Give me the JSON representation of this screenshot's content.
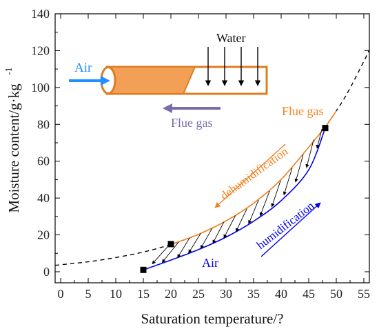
{
  "chart_data": {
    "type": "line",
    "xlabel": "Saturation temperature/?",
    "ylabel": "Moisture content/g·kg",
    "ylabel_exp": "-1",
    "xlim": [
      -1,
      56
    ],
    "ylim": [
      -6,
      140
    ],
    "xticks": [
      0,
      5,
      10,
      15,
      20,
      25,
      30,
      35,
      40,
      45,
      50,
      55
    ],
    "yticks": [
      0,
      20,
      40,
      60,
      80,
      100,
      120,
      140
    ],
    "grid": false,
    "series": [
      {
        "name": "",
        "style": "dashed",
        "color": "#000000",
        "x": [
          -1,
          0,
          5,
          10,
          15,
          20,
          25,
          30,
          35,
          40,
          45,
          48,
          50,
          52,
          55,
          56
        ],
        "y": [
          3.5,
          3.8,
          5.4,
          7.7,
          10.7,
          14.8,
          20.3,
          27.6,
          37.2,
          50.1,
          67.6,
          78.6,
          87.3,
          96.9,
          114.2,
          120.5
        ]
      },
      {
        "name": "Flue gas",
        "color": "#f58220",
        "x": [
          20,
          25,
          30,
          35,
          40,
          45,
          48,
          50
        ],
        "y": [
          14.8,
          20.3,
          27.6,
          37.2,
          50.1,
          67.6,
          78.6,
          87.3
        ]
      },
      {
        "name": "Air",
        "color": "#0000ee",
        "x": [
          15,
          20,
          25,
          30,
          35,
          40,
          45,
          48
        ],
        "y": [
          1.0,
          6.3,
          12.0,
          18.8,
          27.4,
          38.6,
          55.3,
          78.0
        ]
      }
    ],
    "markers": [
      {
        "x": 15,
        "y": 1.0,
        "shape": "square"
      },
      {
        "x": 20,
        "y": 15.0,
        "shape": "square"
      },
      {
        "x": 48,
        "y": 78.0,
        "shape": "square"
      }
    ],
    "arrows": [
      {
        "from": [
          19.6,
          14.2
        ],
        "to": [
          16.6,
          4.2
        ]
      },
      {
        "from": [
          21.4,
          16.1
        ],
        "to": [
          18.4,
          5.0
        ]
      },
      {
        "from": [
          23.4,
          18.4
        ],
        "to": [
          21.2,
          7.6
        ]
      },
      {
        "from": [
          25.4,
          20.8
        ],
        "to": [
          23.2,
          10.1
        ]
      },
      {
        "from": [
          27.5,
          23.7
        ],
        "to": [
          25.4,
          12.6
        ]
      },
      {
        "from": [
          29.6,
          26.9
        ],
        "to": [
          27.6,
          15.4
        ]
      },
      {
        "from": [
          31.7,
          30.5
        ],
        "to": [
          29.6,
          18.3
        ]
      },
      {
        "from": [
          33.8,
          34.2
        ],
        "to": [
          31.8,
          21.8
        ]
      },
      {
        "from": [
          35.9,
          38.9
        ],
        "to": [
          34.1,
          26.0
        ]
      },
      {
        "from": [
          37.9,
          43.8
        ],
        "to": [
          36.2,
          30.3
        ]
      },
      {
        "from": [
          39.9,
          49.5
        ],
        "to": [
          38.3,
          35.2
        ]
      },
      {
        "from": [
          42.0,
          56.4
        ],
        "to": [
          40.5,
          41.6
        ]
      },
      {
        "from": [
          44.0,
          63.6
        ],
        "to": [
          42.6,
          48.6
        ]
      },
      {
        "from": [
          45.9,
          71.7
        ],
        "to": [
          44.6,
          56.5
        ]
      },
      {
        "from": [
          47.4,
          77.5
        ],
        "to": [
          46.5,
          67.0
        ]
      }
    ],
    "annotations": [
      {
        "id": "flue_gas",
        "text": "Flue gas",
        "color": "#f58220"
      },
      {
        "id": "air",
        "text": "Air",
        "color": "#0000ee"
      },
      {
        "id": "dehumidification",
        "text": "dehumidification",
        "color": "#f58220"
      },
      {
        "id": "humidification",
        "text": "humidification",
        "color": "#0000ee"
      }
    ],
    "inset": {
      "air_label": "Air",
      "air_color": "#1e90ff",
      "water_label": "Water",
      "flue_gas_label": "Flue gas",
      "flue_gas_color": "#7b6ca8",
      "pipe_fill": "#f2a055",
      "pipe_stroke": "#e07b1f"
    }
  }
}
